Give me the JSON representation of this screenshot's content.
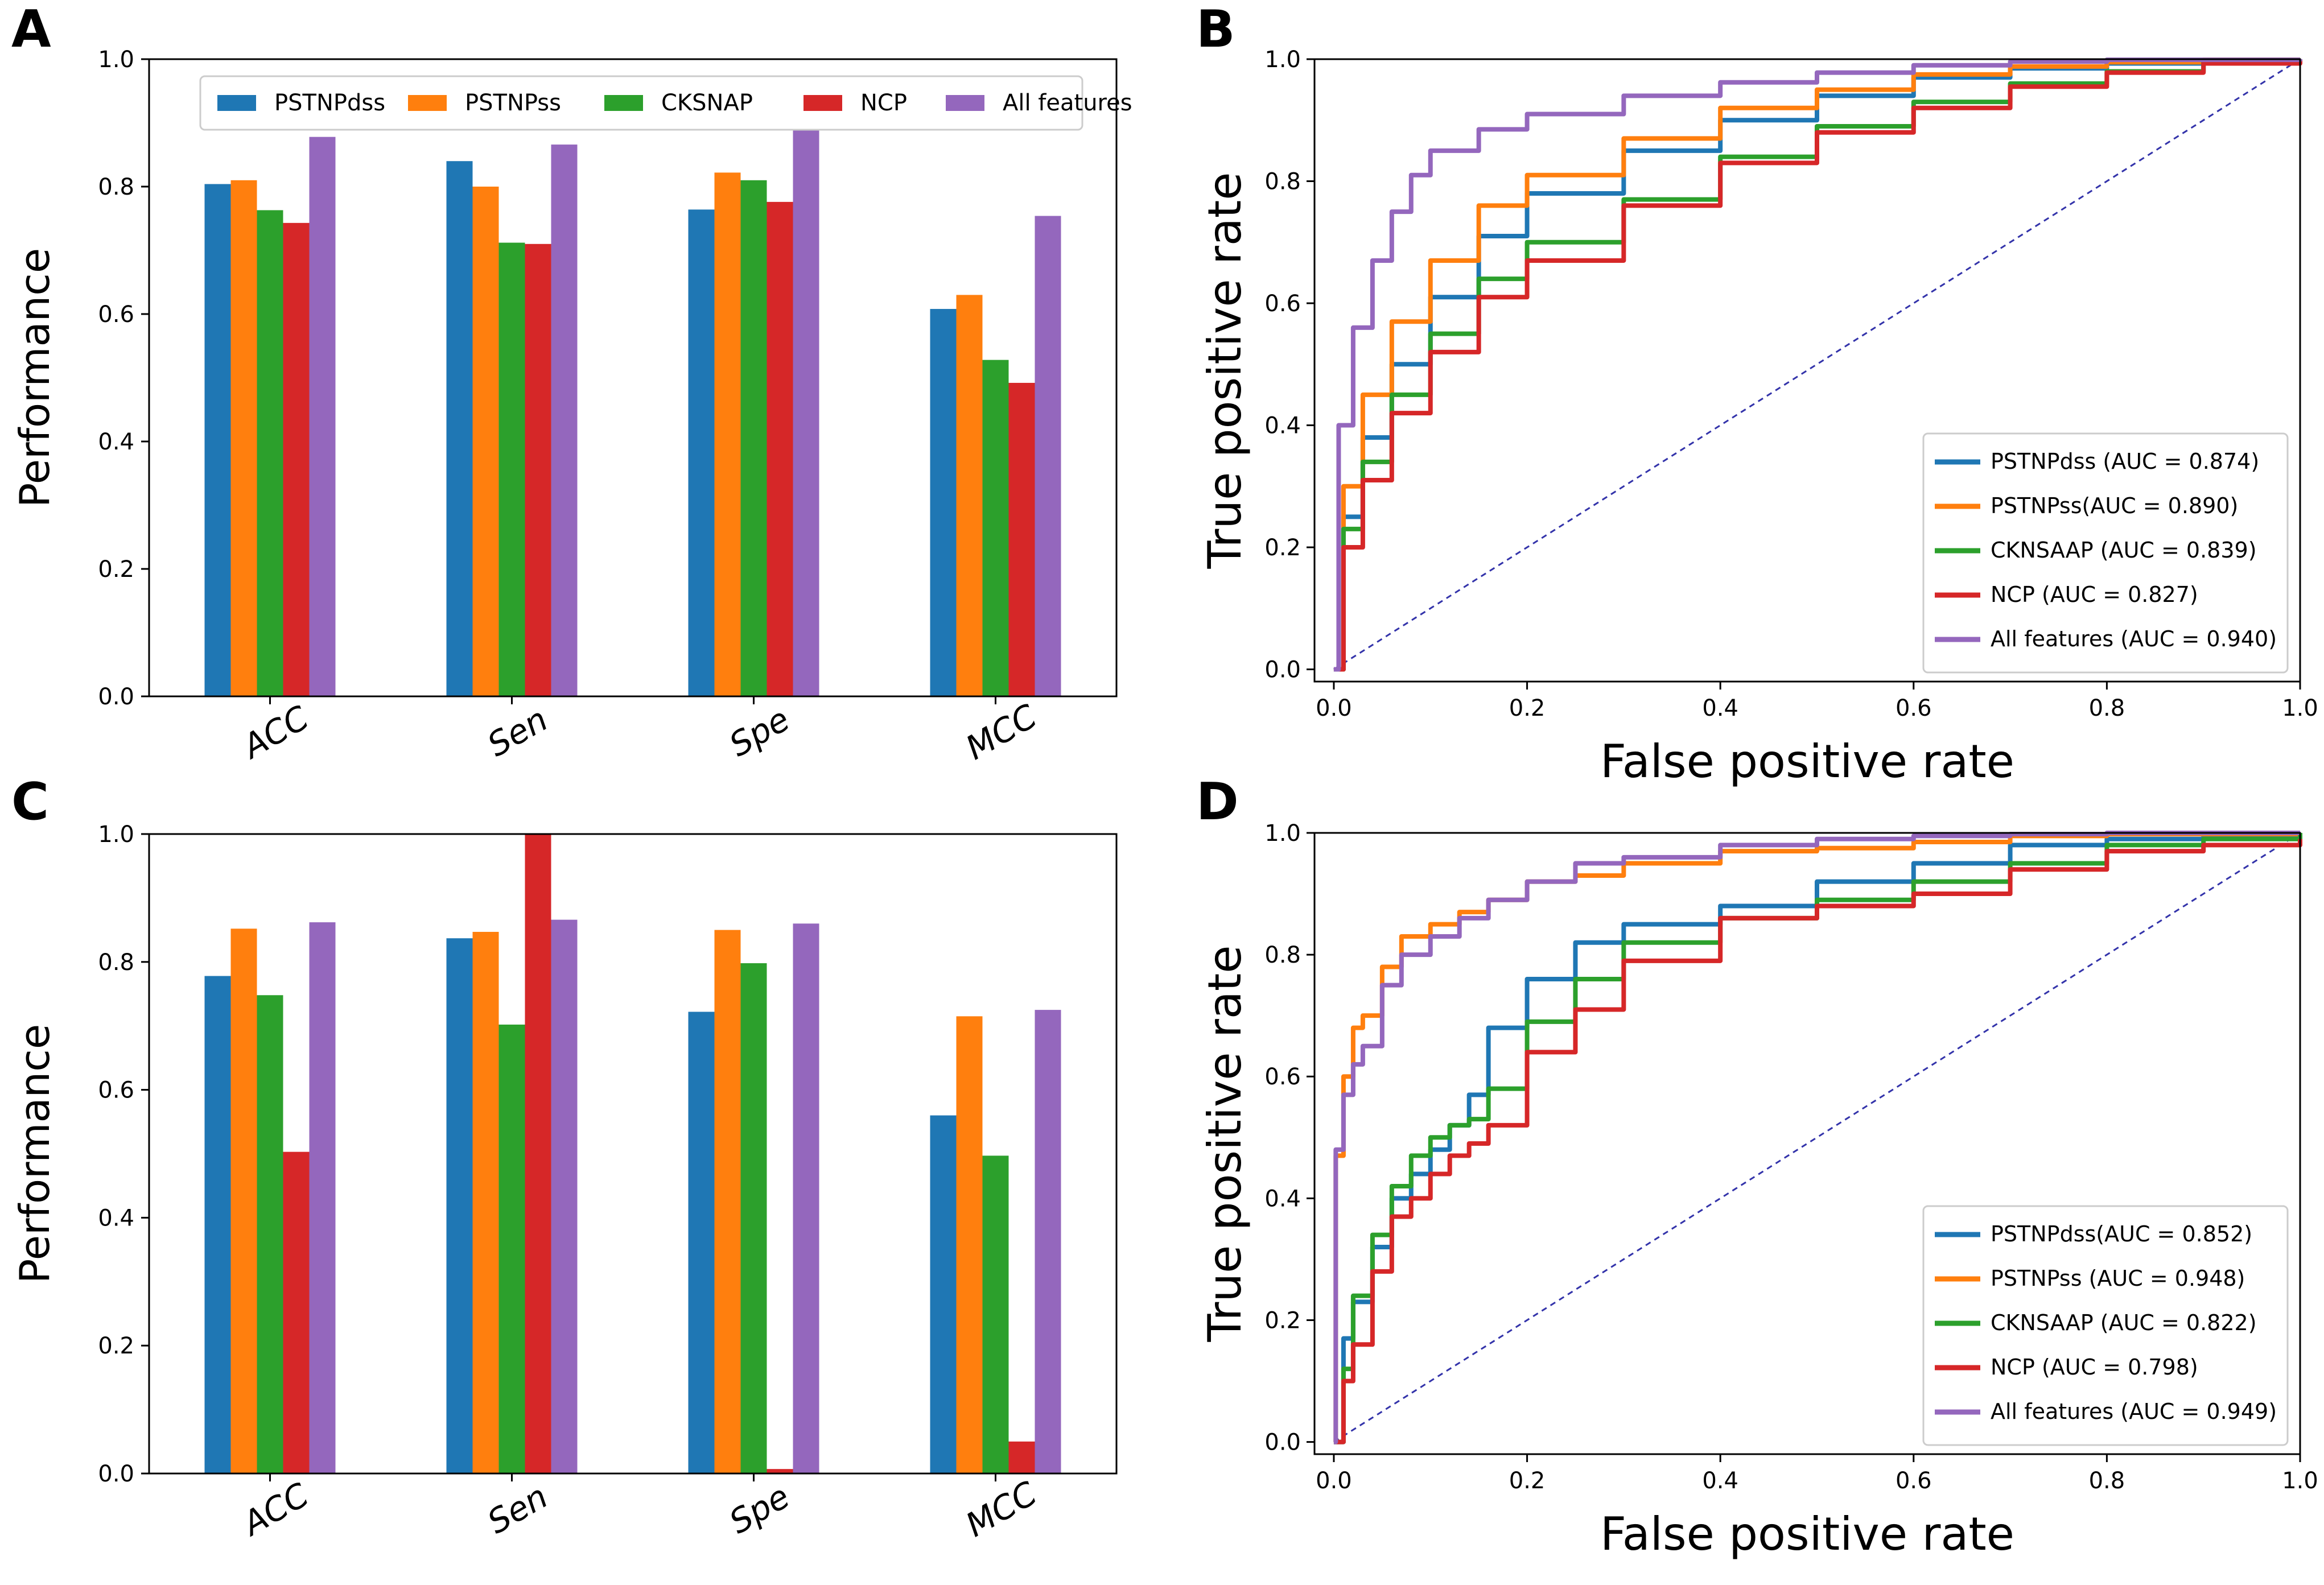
{
  "colors": {
    "PSTNPdss": "#1f77b4",
    "PSTNPss": "#ff7f0e",
    "CKSNAP": "#2ca02c",
    "NCP": "#d62728",
    "All": "#9467bd",
    "diagonal": "#3333aa"
  },
  "chart_data": [
    {
      "type": "bar",
      "panel": "A",
      "ylabel": "Performance",
      "xlabel": "",
      "ylim": [
        0,
        1.0
      ],
      "yticks": [
        "0.0",
        "0.2",
        "0.4",
        "0.6",
        "0.8",
        "1.0"
      ],
      "categories": [
        "ACC",
        "Sen",
        "Spe",
        "MCC"
      ],
      "legend": "top",
      "series": [
        {
          "name": "PSTNPdss",
          "values": [
            0.804,
            0.84,
            0.764,
            0.608
          ]
        },
        {
          "name": "PSTNPss",
          "values": [
            0.81,
            0.8,
            0.822,
            0.63
          ]
        },
        {
          "name": "CKSNAP",
          "values": [
            0.763,
            0.712,
            0.81,
            0.528
          ]
        },
        {
          "name": "NCP",
          "values": [
            0.743,
            0.71,
            0.776,
            0.492
          ]
        },
        {
          "name": "All features",
          "values": [
            0.878,
            0.866,
            0.89,
            0.754
          ]
        }
      ]
    },
    {
      "type": "line",
      "panel": "B",
      "xlabel": "False positive rate",
      "ylabel": "True positive rate",
      "xlim": [
        0,
        1
      ],
      "ylim": [
        0,
        1
      ],
      "xticks": [
        "0.0",
        "0.2",
        "0.4",
        "0.6",
        "0.8",
        "1.0"
      ],
      "yticks": [
        "0.0",
        "0.2",
        "0.4",
        "0.6",
        "0.8",
        "1.0"
      ],
      "legend": "lower-right",
      "series": [
        {
          "name": "PSTNPdss (AUC = 0.874)",
          "x": [
            0,
            0.01,
            0.03,
            0.06,
            0.1,
            0.15,
            0.2,
            0.3,
            0.4,
            0.5,
            0.6,
            0.7,
            0.8,
            0.9,
            1.0
          ],
          "y": [
            0,
            0.25,
            0.38,
            0.5,
            0.61,
            0.71,
            0.78,
            0.85,
            0.9,
            0.94,
            0.97,
            0.985,
            0.993,
            0.998,
            1.0
          ]
        },
        {
          "name": "PSTNPss(AUC = 0.890)",
          "x": [
            0,
            0.01,
            0.03,
            0.06,
            0.1,
            0.15,
            0.2,
            0.3,
            0.4,
            0.5,
            0.6,
            0.7,
            0.8,
            0.9,
            1.0
          ],
          "y": [
            0,
            0.3,
            0.45,
            0.57,
            0.67,
            0.76,
            0.81,
            0.87,
            0.92,
            0.95,
            0.975,
            0.988,
            0.995,
            0.999,
            1.0
          ]
        },
        {
          "name": "CKNSAAP (AUC = 0.839)",
          "x": [
            0,
            0.01,
            0.03,
            0.06,
            0.1,
            0.15,
            0.2,
            0.3,
            0.4,
            0.5,
            0.6,
            0.7,
            0.8,
            0.9,
            1.0
          ],
          "y": [
            0,
            0.23,
            0.34,
            0.45,
            0.55,
            0.64,
            0.7,
            0.77,
            0.84,
            0.89,
            0.93,
            0.96,
            0.98,
            0.995,
            1.0
          ]
        },
        {
          "name": "NCP (AUC = 0.827)",
          "x": [
            0,
            0.01,
            0.03,
            0.06,
            0.1,
            0.15,
            0.2,
            0.3,
            0.4,
            0.5,
            0.6,
            0.7,
            0.8,
            0.9,
            1.0
          ],
          "y": [
            0,
            0.2,
            0.31,
            0.42,
            0.52,
            0.61,
            0.67,
            0.76,
            0.83,
            0.88,
            0.92,
            0.955,
            0.978,
            0.993,
            1.0
          ]
        },
        {
          "name": "All features (AUC = 0.940)",
          "x": [
            0,
            0.005,
            0.02,
            0.04,
            0.06,
            0.08,
            0.1,
            0.15,
            0.2,
            0.3,
            0.4,
            0.5,
            0.6,
            0.7,
            0.8,
            1.0
          ],
          "y": [
            0,
            0.4,
            0.56,
            0.67,
            0.75,
            0.81,
            0.85,
            0.885,
            0.91,
            0.94,
            0.962,
            0.978,
            0.99,
            0.996,
            0.999,
            1.0
          ]
        }
      ]
    },
    {
      "type": "bar",
      "panel": "C",
      "ylabel": "Performance",
      "xlabel": "",
      "ylim": [
        0,
        1.0
      ],
      "yticks": [
        "0.0",
        "0.2",
        "0.4",
        "0.6",
        "0.8",
        "1.0"
      ],
      "categories": [
        "ACC",
        "Sen",
        "Spe",
        "MCC"
      ],
      "series": [
        {
          "name": "PSTNPdss",
          "values": [
            0.778,
            0.837,
            0.722,
            0.56
          ]
        },
        {
          "name": "PSTNPss",
          "values": [
            0.852,
            0.847,
            0.85,
            0.715
          ]
        },
        {
          "name": "CKSNAP",
          "values": [
            0.748,
            0.702,
            0.798,
            0.497
          ]
        },
        {
          "name": "NCP",
          "values": [
            0.503,
            1.0,
            0.007,
            0.05
          ]
        },
        {
          "name": "All features",
          "values": [
            0.862,
            0.866,
            0.86,
            0.725
          ]
        }
      ]
    },
    {
      "type": "line",
      "panel": "D",
      "xlabel": "False positive rate",
      "ylabel": "True positive rate",
      "xlim": [
        0,
        1
      ],
      "ylim": [
        0,
        1
      ],
      "xticks": [
        "0.0",
        "0.2",
        "0.4",
        "0.6",
        "0.8",
        "1.0"
      ],
      "yticks": [
        "0.0",
        "0.2",
        "0.4",
        "0.6",
        "0.8",
        "1.0"
      ],
      "legend": "lower-right",
      "series": [
        {
          "name": "PSTNPdss(AUC = 0.852)",
          "x": [
            0,
            0.01,
            0.02,
            0.04,
            0.06,
            0.08,
            0.1,
            0.12,
            0.14,
            0.16,
            0.2,
            0.25,
            0.3,
            0.4,
            0.5,
            0.6,
            0.7,
            0.8,
            0.9,
            1.0
          ],
          "y": [
            0,
            0.17,
            0.23,
            0.32,
            0.4,
            0.44,
            0.48,
            0.52,
            0.57,
            0.68,
            0.76,
            0.82,
            0.85,
            0.88,
            0.92,
            0.95,
            0.98,
            0.99,
            0.995,
            1.0
          ]
        },
        {
          "name": "PSTNPss (AUC = 0.948)",
          "x": [
            0,
            0.002,
            0.01,
            0.02,
            0.03,
            0.05,
            0.07,
            0.1,
            0.13,
            0.16,
            0.2,
            0.25,
            0.3,
            0.4,
            0.5,
            0.6,
            0.7,
            0.8,
            1.0
          ],
          "y": [
            0,
            0.47,
            0.6,
            0.68,
            0.7,
            0.78,
            0.83,
            0.85,
            0.87,
            0.89,
            0.92,
            0.93,
            0.95,
            0.97,
            0.975,
            0.985,
            0.995,
            0.998,
            1.0
          ]
        },
        {
          "name": "CKNSAAP (AUC = 0.822)",
          "x": [
            0,
            0.01,
            0.02,
            0.04,
            0.06,
            0.08,
            0.1,
            0.12,
            0.14,
            0.16,
            0.2,
            0.25,
            0.3,
            0.4,
            0.5,
            0.6,
            0.7,
            0.8,
            0.9,
            1.0
          ],
          "y": [
            0,
            0.12,
            0.24,
            0.34,
            0.42,
            0.47,
            0.5,
            0.52,
            0.53,
            0.58,
            0.69,
            0.76,
            0.82,
            0.86,
            0.89,
            0.92,
            0.95,
            0.98,
            0.99,
            1.0
          ]
        },
        {
          "name": "NCP (AUC = 0.798)",
          "x": [
            0,
            0.01,
            0.02,
            0.04,
            0.06,
            0.08,
            0.1,
            0.12,
            0.14,
            0.16,
            0.2,
            0.25,
            0.3,
            0.4,
            0.5,
            0.6,
            0.7,
            0.8,
            0.9,
            1.0
          ],
          "y": [
            0,
            0.1,
            0.16,
            0.28,
            0.37,
            0.4,
            0.44,
            0.47,
            0.49,
            0.52,
            0.64,
            0.71,
            0.79,
            0.86,
            0.88,
            0.9,
            0.94,
            0.97,
            0.98,
            0.99
          ]
        },
        {
          "name": "All features (AUC = 0.949)",
          "x": [
            0,
            0.002,
            0.01,
            0.02,
            0.03,
            0.05,
            0.07,
            0.1,
            0.13,
            0.16,
            0.2,
            0.25,
            0.3,
            0.4,
            0.5,
            0.6,
            0.7,
            0.8,
            1.0
          ],
          "y": [
            0,
            0.48,
            0.57,
            0.62,
            0.65,
            0.75,
            0.8,
            0.83,
            0.86,
            0.89,
            0.92,
            0.95,
            0.96,
            0.98,
            0.99,
            0.995,
            0.998,
            1.0,
            1.0
          ]
        }
      ]
    }
  ]
}
